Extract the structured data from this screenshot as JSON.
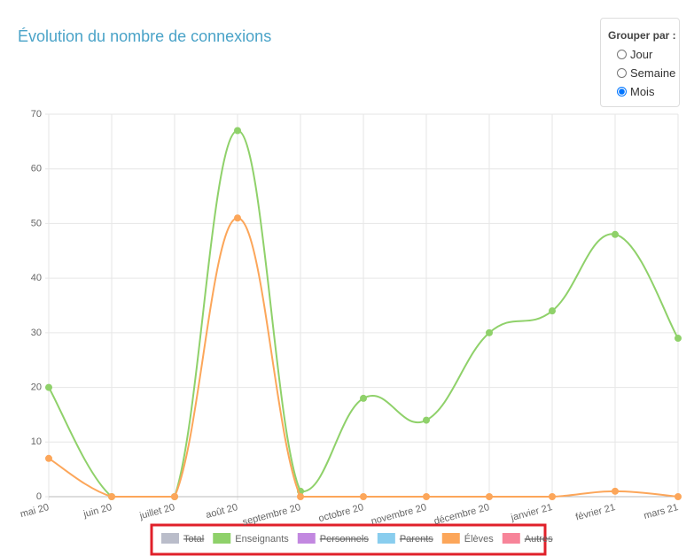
{
  "chart_data": {
    "type": "line",
    "title": "Évolution du nombre de connexions",
    "categories": [
      "mai 20",
      "juin 20",
      "juillet 20",
      "août 20",
      "septembre 20",
      "octobre 20",
      "novembre 20",
      "décembre 20",
      "janvier 21",
      "février 21",
      "mars 21"
    ],
    "series": [
      {
        "name": "Total",
        "color": "#a9adbd",
        "hidden": true
      },
      {
        "name": "Enseignants",
        "color": "#8fd16a",
        "values": [
          20,
          0,
          0,
          67,
          1,
          18,
          14,
          30,
          34,
          48,
          29
        ]
      },
      {
        "name": "Personnels",
        "color": "#b36ad8",
        "hidden": true
      },
      {
        "name": "Parents",
        "color": "#6cc0ea",
        "hidden": true
      },
      {
        "name": "Élèves",
        "color": "#fca65a",
        "values": [
          7,
          0,
          0,
          51,
          0,
          0,
          0,
          0,
          0,
          1,
          0
        ]
      },
      {
        "name": "Autres",
        "color": "#f5657f",
        "hidden": true
      }
    ],
    "ylim": [
      0,
      70
    ],
    "yticks": [
      0,
      10,
      20,
      30,
      40,
      50,
      60,
      70
    ],
    "grid": true
  },
  "group_by": {
    "label": "Grouper par :",
    "options": [
      "Jour",
      "Semaine",
      "Mois"
    ],
    "selected": "Mois"
  }
}
